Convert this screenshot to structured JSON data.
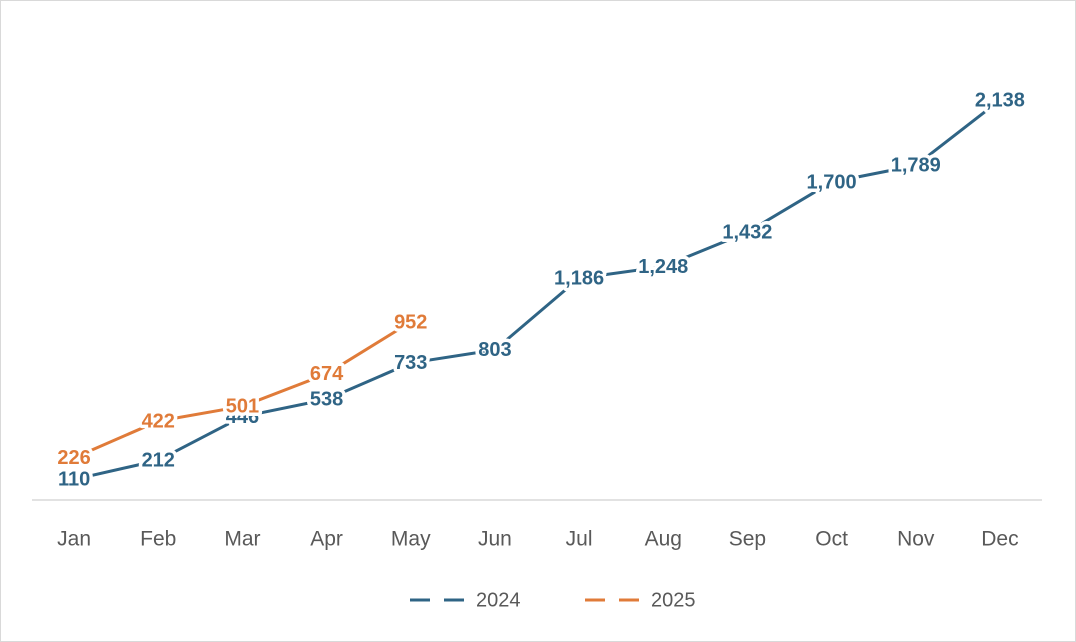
{
  "chart_data": {
    "type": "line",
    "categories": [
      "Jan",
      "Feb",
      "Mar",
      "Apr",
      "May",
      "Jun",
      "Jul",
      "Aug",
      "Sep",
      "Oct",
      "Nov",
      "Dec"
    ],
    "series": [
      {
        "name": "2024",
        "color": "#2f6485",
        "values": [
          110,
          212,
          446,
          538,
          733,
          803,
          1186,
          1248,
          1432,
          1700,
          1789,
          2138
        ],
        "value_labels": [
          "110",
          "212",
          "446",
          "538",
          "733",
          "803",
          "1,186",
          "1,248",
          "1,432",
          "1,700",
          "1,789",
          "2,138"
        ]
      },
      {
        "name": "2025",
        "color": "#e07b39",
        "values": [
          226,
          422,
          501,
          674,
          952,
          null,
          null,
          null,
          null,
          null,
          null,
          null
        ]
      }
    ],
    "ylim": [
      0,
      2500
    ],
    "grid": false,
    "legend": "bottom"
  }
}
